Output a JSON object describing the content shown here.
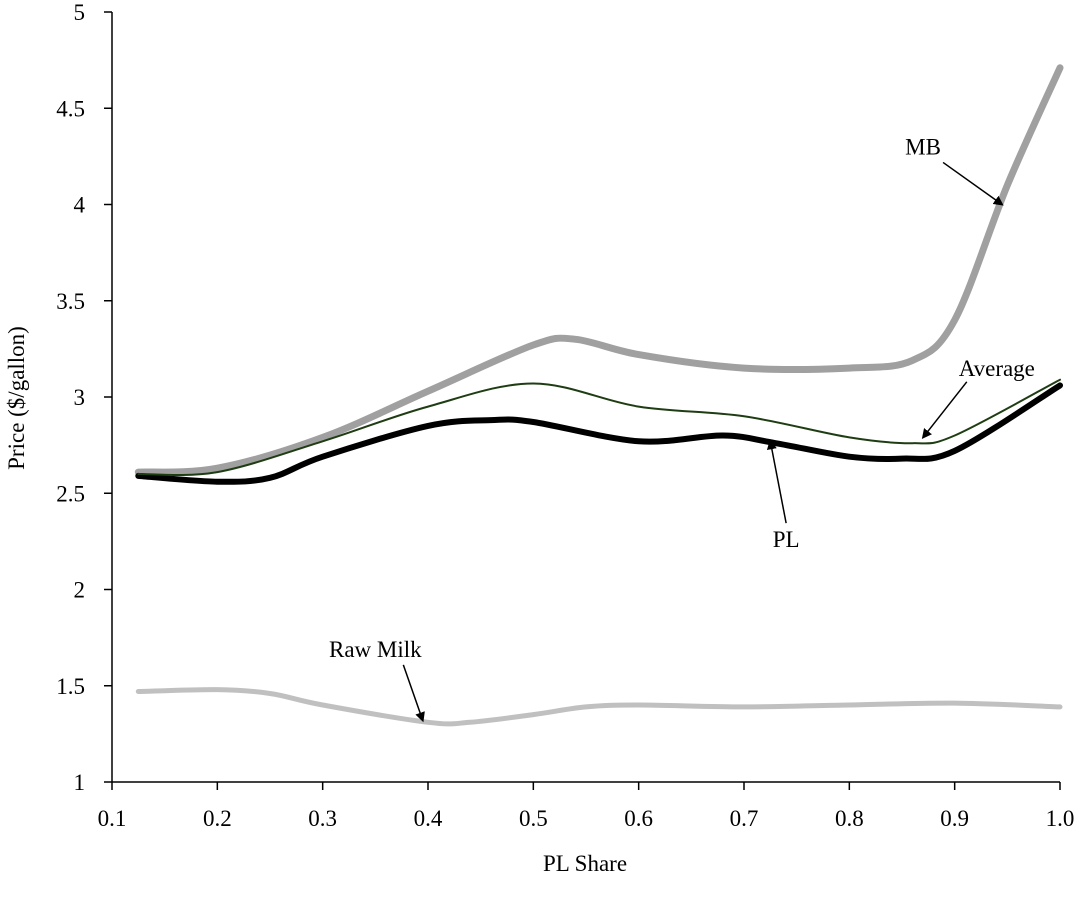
{
  "chart_data": {
    "type": "line",
    "xlabel": "PL Share",
    "ylabel": "Price ($/gallon)",
    "xlim": [
      0.1,
      1.0
    ],
    "ylim": [
      1,
      5
    ],
    "xticks": [
      "0.1",
      "0.2",
      "0.3",
      "0.4",
      "0.5",
      "0.6",
      "0.7",
      "0.8",
      "0.9",
      "1.0"
    ],
    "yticks": [
      "1",
      "1.5",
      "2",
      "2.5",
      "3",
      "3.5",
      "4",
      "4.5",
      "5"
    ],
    "grid": false,
    "legend": "none",
    "series": [
      {
        "name": "MB",
        "color": "#a0a0a0",
        "x": [
          0.125,
          0.2,
          0.3,
          0.4,
          0.5,
          0.54,
          0.6,
          0.7,
          0.8,
          0.86,
          0.9,
          0.95,
          1.0
        ],
        "y": [
          2.61,
          2.63,
          2.79,
          3.03,
          3.27,
          3.3,
          3.22,
          3.15,
          3.15,
          3.19,
          3.4,
          4.1,
          4.71
        ]
      },
      {
        "name": "Average",
        "color": "#1f3d13",
        "x": [
          0.125,
          0.2,
          0.3,
          0.4,
          0.5,
          0.6,
          0.7,
          0.8,
          0.86,
          0.9,
          1.0
        ],
        "y": [
          2.6,
          2.61,
          2.77,
          2.95,
          3.07,
          2.95,
          2.9,
          2.79,
          2.76,
          2.8,
          3.09
        ]
      },
      {
        "name": "PL",
        "color": "#000000",
        "x": [
          0.125,
          0.2,
          0.25,
          0.3,
          0.4,
          0.46,
          0.5,
          0.6,
          0.68,
          0.73,
          0.8,
          0.85,
          0.9,
          1.0
        ],
        "y": [
          2.59,
          2.56,
          2.58,
          2.69,
          2.85,
          2.88,
          2.87,
          2.77,
          2.8,
          2.76,
          2.69,
          2.68,
          2.72,
          3.06
        ]
      },
      {
        "name": "Raw Milk",
        "color": "#c0c0c0",
        "x": [
          0.125,
          0.2,
          0.25,
          0.3,
          0.4,
          0.44,
          0.5,
          0.55,
          0.6,
          0.7,
          0.8,
          0.9,
          1.0
        ],
        "y": [
          1.47,
          1.48,
          1.46,
          1.4,
          1.31,
          1.31,
          1.35,
          1.39,
          1.4,
          1.39,
          1.4,
          1.41,
          1.39
        ]
      }
    ],
    "annotations": [
      {
        "label": "MB",
        "series": "MB",
        "label_at": [
          0.87,
          4.26
        ],
        "arrow_to": [
          0.945,
          4.0
        ]
      },
      {
        "label": "Average",
        "series": "Average",
        "label_at": [
          0.94,
          3.11
        ],
        "arrow_to": [
          0.87,
          2.79
        ]
      },
      {
        "label": "PL",
        "series": "PL",
        "label_at": [
          0.74,
          2.22
        ],
        "arrow_to": [
          0.725,
          2.77
        ]
      },
      {
        "label": "Raw Milk",
        "series": "Raw Milk",
        "label_at": [
          0.35,
          1.65
        ],
        "arrow_to": [
          0.395,
          1.32
        ]
      }
    ]
  }
}
